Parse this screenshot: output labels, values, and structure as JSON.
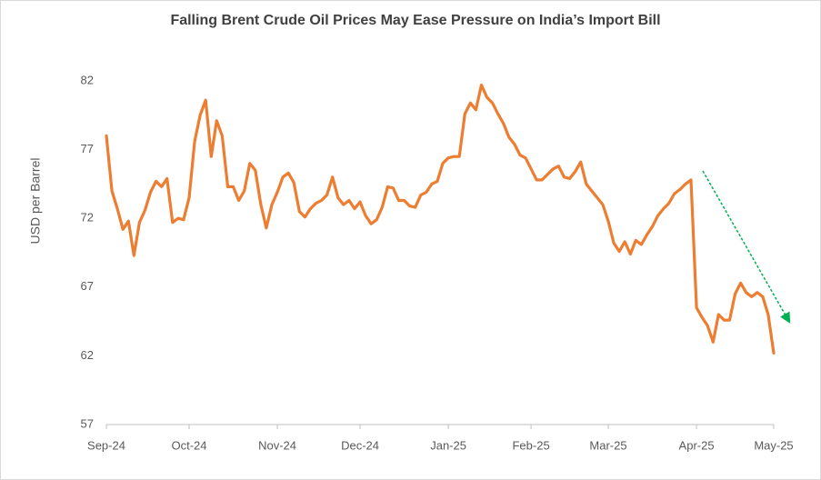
{
  "chart_data": {
    "type": "line",
    "title": "Falling Brent Crude Oil Prices May Ease Pressure on India’s Import Bill",
    "y_label": "USD per Barrel",
    "categories": [
      "Sep-24",
      null,
      null,
      null,
      null,
      null,
      null,
      null,
      null,
      null,
      null,
      null,
      null,
      null,
      null,
      "Oct-24",
      null,
      null,
      null,
      null,
      null,
      null,
      null,
      null,
      null,
      null,
      null,
      null,
      null,
      null,
      null,
      "Nov-24",
      null,
      null,
      null,
      null,
      null,
      null,
      null,
      null,
      null,
      null,
      null,
      null,
      null,
      null,
      "Dec-24",
      null,
      null,
      null,
      null,
      null,
      null,
      null,
      null,
      null,
      null,
      null,
      null,
      null,
      null,
      null,
      "Jan-25",
      null,
      null,
      null,
      null,
      null,
      null,
      null,
      null,
      null,
      null,
      null,
      null,
      null,
      null,
      "Feb-25",
      null,
      null,
      null,
      null,
      null,
      null,
      null,
      null,
      null,
      null,
      null,
      null,
      null,
      "Mar-25",
      null,
      null,
      null,
      null,
      null,
      null,
      null,
      null,
      null,
      null,
      null,
      null,
      null,
      null,
      null,
      "Apr-25",
      null,
      null,
      null,
      null,
      null,
      null,
      null,
      null,
      null,
      null,
      null,
      null,
      null,
      "May-25"
    ],
    "series": [
      {
        "name": "Brent Crude",
        "color": "#ed7d31",
        "values": [
          78.0,
          74.0,
          72.7,
          71.2,
          71.8,
          69.3,
          71.7,
          72.6,
          73.9,
          74.7,
          74.3,
          74.9,
          71.7,
          72.0,
          71.9,
          73.5,
          77.6,
          79.5,
          80.6,
          76.5,
          79.1,
          78.0,
          74.3,
          74.3,
          73.3,
          74.0,
          76.0,
          75.5,
          73.0,
          71.3,
          73.0,
          73.9,
          75.0,
          75.3,
          74.6,
          72.5,
          72.1,
          72.7,
          73.1,
          73.3,
          73.7,
          75.0,
          73.5,
          73.0,
          73.3,
          72.7,
          73.2,
          72.2,
          71.6,
          71.9,
          72.8,
          74.3,
          74.2,
          73.3,
          73.3,
          72.9,
          72.8,
          73.7,
          73.9,
          74.5,
          74.7,
          76.0,
          76.4,
          76.5,
          76.5,
          79.6,
          80.4,
          79.9,
          81.7,
          80.8,
          80.4,
          79.6,
          78.9,
          77.9,
          77.4,
          76.6,
          76.4,
          75.6,
          74.8,
          74.8,
          75.2,
          75.6,
          75.8,
          75.0,
          74.9,
          75.4,
          76.1,
          74.5,
          74.0,
          73.5,
          73.0,
          71.8,
          70.2,
          69.6,
          70.3,
          69.4,
          70.4,
          70.1,
          70.8,
          71.4,
          72.2,
          72.7,
          73.1,
          73.8,
          74.1,
          74.5,
          74.8,
          65.5,
          64.8,
          64.2,
          63.0,
          65.0,
          64.6,
          64.6,
          66.5,
          67.3,
          66.6,
          66.3,
          66.6,
          66.3,
          65.0,
          62.2
        ]
      }
    ],
    "ylim": [
      57,
      82
    ],
    "yticks": [
      57,
      62,
      67,
      72,
      77,
      82
    ],
    "grid": false
  }
}
